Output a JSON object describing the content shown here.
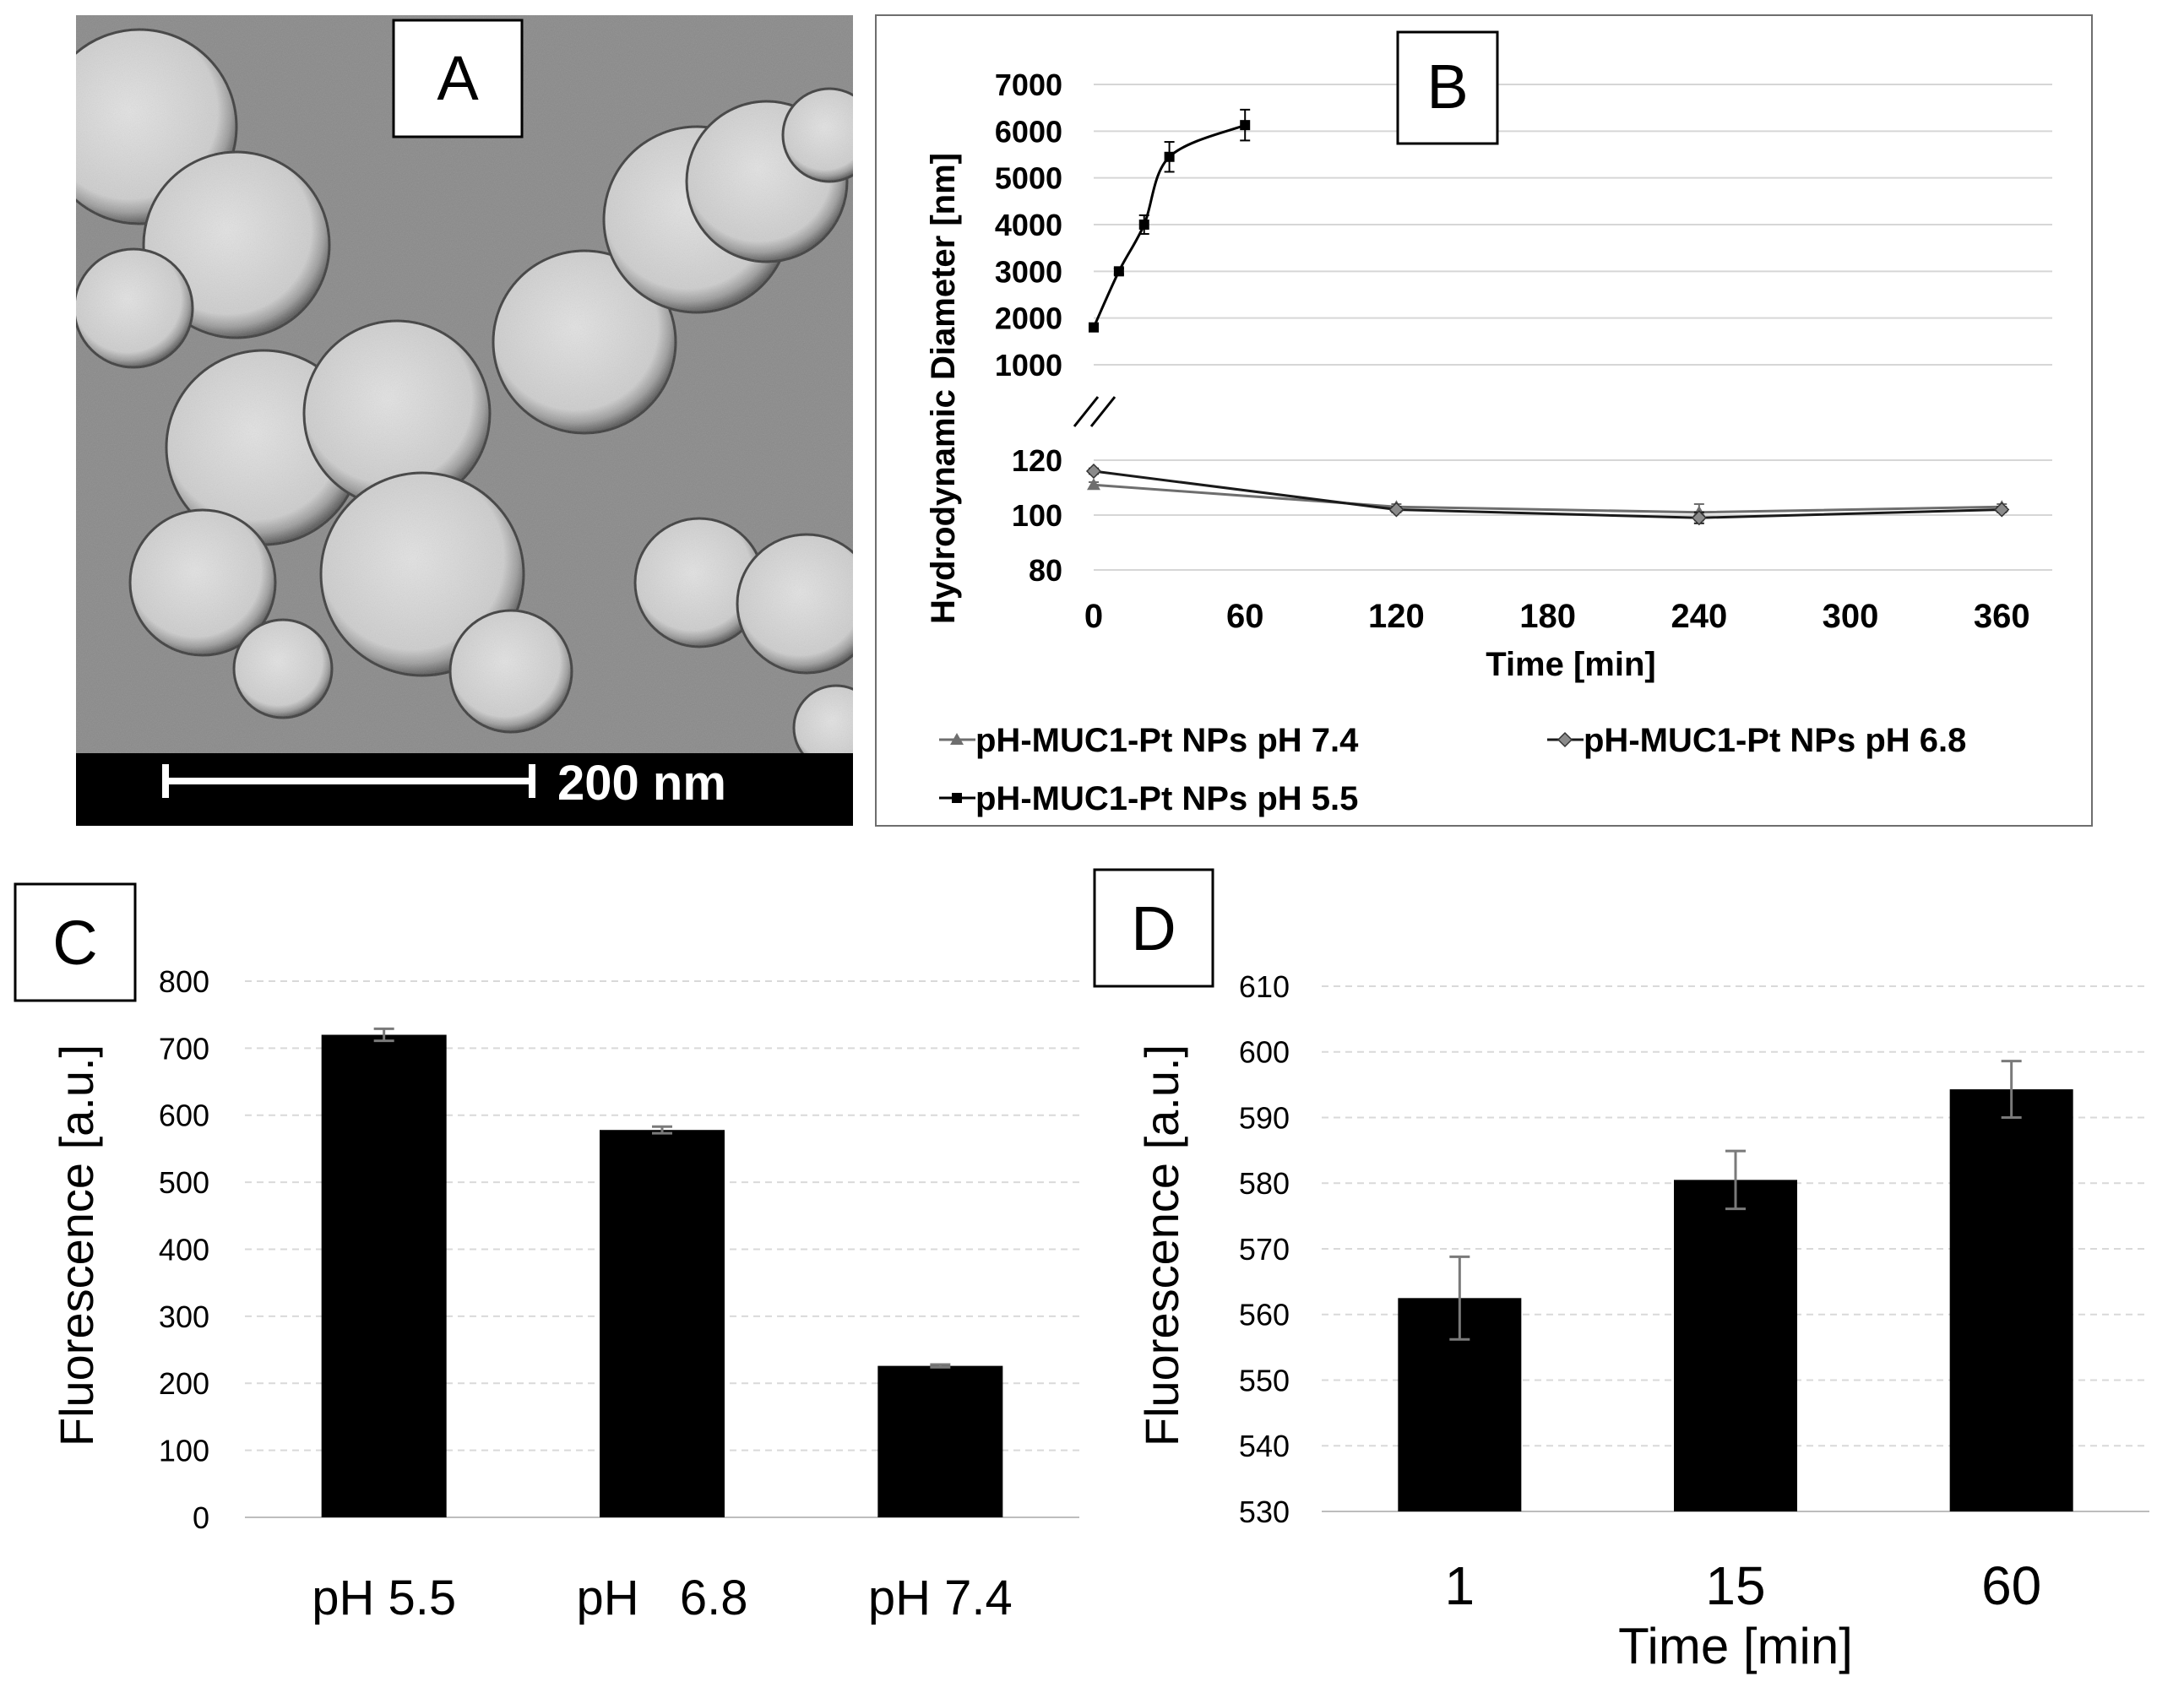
{
  "panel_labels": {
    "a": "A",
    "b": "B",
    "c": "C",
    "d": "D"
  },
  "micrograph": {
    "scale_bar_label": "200 nm",
    "description": "TEM micrograph of spherical nanoparticles"
  },
  "chart_data": [
    {
      "panel": "B",
      "type": "line",
      "ylabel": "Hydrodynamic Diameter [nm]",
      "xlabel": "Time [min]",
      "x_ticks": [
        0,
        60,
        120,
        180,
        240,
        300,
        360
      ],
      "xlim": [
        0,
        380
      ],
      "axis_break": true,
      "upper_axis": {
        "ylim": [
          1000,
          7000
        ],
        "y_ticks": [
          1000,
          2000,
          3000,
          4000,
          5000,
          6000,
          7000
        ]
      },
      "lower_axis": {
        "ylim": [
          80,
          120
        ],
        "y_ticks": [
          80,
          100,
          120
        ]
      },
      "series": [
        {
          "name": "pH-MUC1-Pt NPs pH 7.4",
          "color": "#6e6e6e",
          "marker": "triangle",
          "axis": "lower",
          "x": [
            0,
            120,
            240,
            360
          ],
          "y": [
            111,
            103,
            101,
            103
          ],
          "err": [
            1,
            1,
            3,
            1
          ]
        },
        {
          "name": "pH-MUC1-Pt NPs pH 6.8",
          "color": "#1a1a1a",
          "marker": "diamond",
          "axis": "lower",
          "x": [
            0,
            120,
            240,
            360
          ],
          "y": [
            116,
            102,
            99,
            102
          ],
          "err": [
            1,
            1,
            2,
            1
          ]
        },
        {
          "name": "pH-MUC1-Pt NPs pH 5.5",
          "color": "#000000",
          "marker": "square",
          "axis": "upper",
          "x": [
            0,
            10,
            20,
            30,
            60
          ],
          "y": [
            1800,
            3000,
            4000,
            5450,
            6130
          ],
          "err": [
            50,
            60,
            200,
            320,
            330
          ]
        }
      ]
    },
    {
      "panel": "C",
      "type": "bar",
      "categories": [
        "pH 5.5",
        "pH   6.8",
        "pH 7.4"
      ],
      "values": [
        720,
        578,
        226
      ],
      "errors": [
        9,
        5,
        2
      ],
      "ylabel": "Fluorescence [a.u.]",
      "xlabel": "",
      "ylim": [
        0,
        800
      ],
      "y_ticks": [
        0,
        100,
        200,
        300,
        400,
        500,
        600,
        700,
        800
      ],
      "grid": true
    },
    {
      "panel": "D",
      "type": "bar",
      "categories": [
        "1",
        "15",
        "60"
      ],
      "values": [
        562.5,
        580.5,
        594.3
      ],
      "errors": [
        6.3,
        4.4,
        4.3
      ],
      "ylabel": "Fluorescence [a.u.]",
      "xlabel": "Time [min]",
      "ylim": [
        530,
        610
      ],
      "y_ticks": [
        530,
        540,
        550,
        560,
        570,
        580,
        590,
        600,
        610
      ],
      "grid": true
    }
  ]
}
